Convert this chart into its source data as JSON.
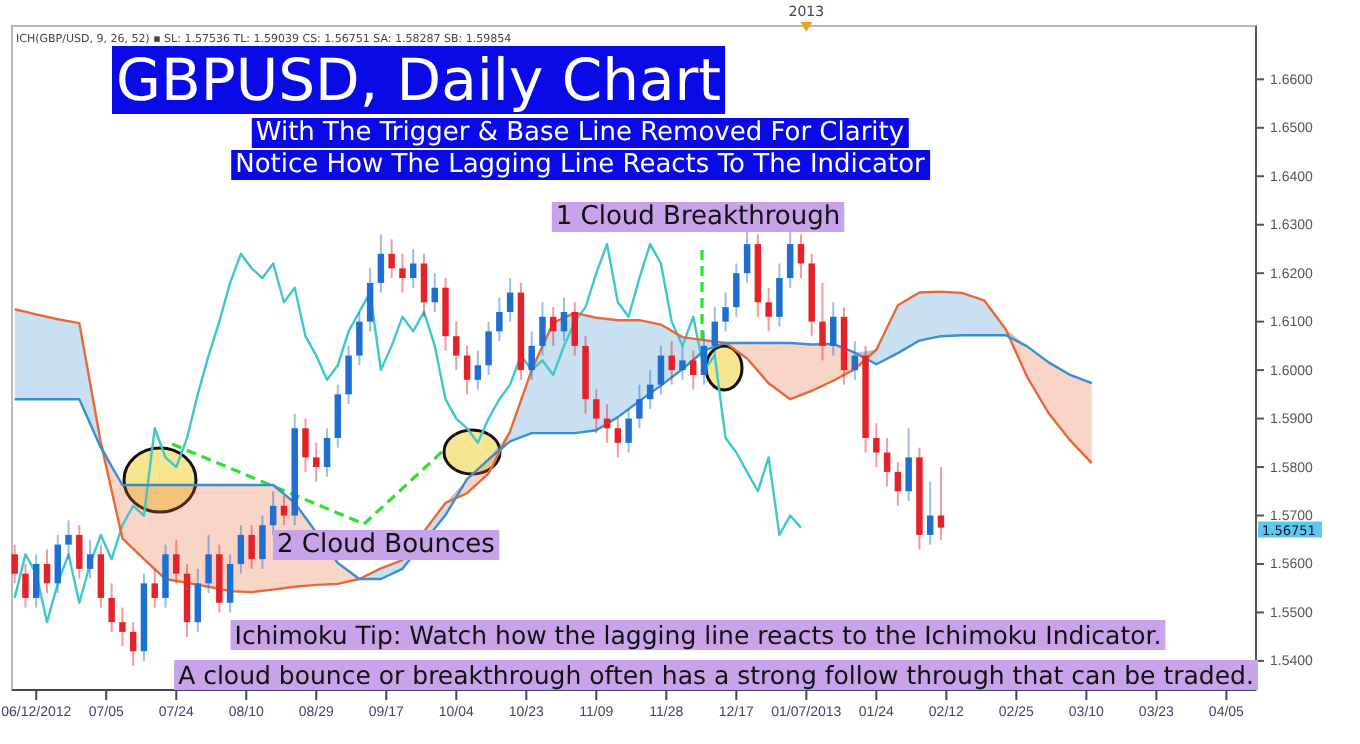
{
  "chart_data": {
    "type": "candlestick",
    "title": "GBPUSD, Daily Chart",
    "subtitle": "With The Trigger & Base Line Removed For Clarity",
    "annotations": [
      "Notice How The Lagging Line Reacts To The Indicator",
      "ICH(GBP/USD, 9, 26, 52) ▪ SL: 1.57536 TL: 1.59039 CS: 1.56751 SA: 1.58287 SB: 1.59854",
      "1 Cloud Breakthrough",
      "2 Cloud Bounces",
      "Ichimoku Tip: Watch how the lagging line reacts to the Ichimoku Indicator.",
      "A cloud bounce or breakthrough often has a strong follow through that can be traded.",
      "2013",
      "1.56751"
    ],
    "categories": [
      null,
      null,
      null,
      null,
      "06/12/2012",
      null,
      null,
      null,
      null,
      null,
      null,
      null,
      null,
      null,
      null,
      null,
      null,
      "07/05",
      null,
      null,
      null,
      null,
      null,
      null,
      null,
      null,
      null,
      null,
      null,
      null,
      "07/24",
      null,
      null,
      null,
      null,
      null,
      null,
      null,
      null,
      null,
      null,
      null,
      null,
      "08/10",
      null,
      null,
      null,
      null,
      null,
      null,
      null,
      null,
      null,
      null,
      null,
      null,
      "08/29",
      null,
      null,
      null,
      null,
      null,
      null,
      null,
      null,
      null,
      null,
      null,
      null,
      "09/17",
      null,
      null,
      null,
      null,
      null,
      null,
      null,
      null,
      null,
      null,
      null,
      null,
      "10/04",
      null,
      null,
      null,
      null,
      null,
      null,
      null,
      null,
      null,
      null,
      null,
      null,
      "10/23",
      null,
      null,
      null,
      null,
      null,
      null,
      null,
      null,
      null,
      null,
      null,
      null,
      "11/09",
      null,
      null,
      null,
      null,
      null,
      null,
      null,
      null,
      null,
      null,
      null,
      null,
      "11/28",
      null,
      null,
      null,
      null,
      null,
      null,
      null,
      null,
      null,
      null,
      null,
      null,
      "12/17",
      null,
      null,
      null,
      null,
      null,
      null,
      null,
      null,
      null,
      null,
      null,
      null,
      "01/07/2013",
      null,
      null,
      null,
      null,
      null,
      null,
      null,
      null,
      null,
      null,
      null,
      null,
      "01/24",
      null,
      null,
      null,
      null,
      null,
      null,
      null,
      null,
      null,
      null,
      null,
      null,
      "02/12",
      null,
      null,
      null,
      null,
      null,
      null,
      null,
      null,
      null,
      null,
      null,
      null,
      "02/25",
      null,
      null,
      null,
      null,
      null,
      null,
      null,
      null,
      null,
      null,
      null,
      null,
      "03/10",
      null,
      null,
      null,
      null,
      null,
      null,
      null,
      null,
      null,
      null,
      null,
      null,
      "03/23",
      null,
      null,
      null,
      null,
      null,
      null,
      null,
      null,
      null,
      null,
      null,
      null,
      "04/05",
      null,
      null,
      null,
      null,
      null
    ],
    "ohlc": [
      [
        1.562,
        1.564,
        1.556,
        1.558
      ],
      null,
      [
        1.558,
        1.56,
        1.551,
        1.553
      ],
      null,
      [
        1.553,
        1.562,
        1.551,
        1.56
      ],
      null,
      [
        1.56,
        1.563,
        1.554,
        1.556
      ],
      null,
      [
        1.556,
        1.566,
        1.554,
        1.564
      ],
      null,
      [
        1.564,
        1.569,
        1.561,
        1.566
      ],
      null,
      [
        1.566,
        1.568,
        1.557,
        1.559
      ],
      null,
      [
        1.559,
        1.565,
        1.557,
        1.562
      ],
      null,
      [
        1.562,
        1.564,
        1.551,
        1.553
      ],
      null,
      [
        1.553,
        1.556,
        1.546,
        1.548
      ],
      null,
      [
        1.548,
        1.551,
        1.543,
        1.546
      ],
      null,
      [
        1.546,
        1.548,
        1.539,
        1.542
      ],
      null,
      [
        1.542,
        1.558,
        1.54,
        1.556
      ],
      null,
      [
        1.556,
        1.559,
        1.551,
        1.553
      ],
      null,
      [
        1.553,
        1.564,
        1.551,
        1.562
      ],
      null,
      [
        1.562,
        1.565,
        1.556,
        1.558
      ],
      null,
      [
        1.558,
        1.56,
        1.545,
        1.548
      ],
      null,
      [
        1.548,
        1.559,
        1.546,
        1.556
      ],
      null,
      [
        1.556,
        1.566,
        1.554,
        1.562
      ],
      null,
      [
        1.562,
        1.564,
        1.55,
        1.552
      ],
      null,
      [
        1.552,
        1.562,
        1.55,
        1.56
      ],
      null,
      [
        1.56,
        1.568,
        1.558,
        1.566
      ],
      null,
      [
        1.566,
        1.568,
        1.559,
        1.561
      ],
      null,
      [
        1.561,
        1.57,
        1.559,
        1.568
      ],
      null,
      [
        1.568,
        1.575,
        1.566,
        1.572
      ],
      null,
      [
        1.572,
        1.574,
        1.568,
        1.57
      ],
      null,
      [
        1.57,
        1.591,
        1.568,
        1.588
      ],
      null,
      [
        1.588,
        1.59,
        1.579,
        1.582
      ],
      null,
      [
        1.582,
        1.585,
        1.577,
        1.58
      ],
      null,
      [
        1.58,
        1.588,
        1.578,
        1.586
      ],
      null,
      [
        1.586,
        1.597,
        1.584,
        1.595
      ],
      null,
      [
        1.595,
        1.605,
        1.593,
        1.603
      ],
      null,
      [
        1.603,
        1.612,
        1.601,
        1.61
      ],
      null,
      [
        1.61,
        1.621,
        1.608,
        1.618
      ],
      null,
      [
        1.618,
        1.628,
        1.616,
        1.624
      ],
      null,
      [
        1.624,
        1.627,
        1.619,
        1.621
      ],
      null,
      [
        1.621,
        1.624,
        1.616,
        1.619
      ],
      null,
      [
        1.619,
        1.625,
        1.617,
        1.622
      ],
      null,
      [
        1.622,
        1.624,
        1.611,
        1.614
      ],
      null,
      [
        1.614,
        1.62,
        1.612,
        1.617
      ],
      null,
      [
        1.617,
        1.619,
        1.604,
        1.607
      ],
      null,
      [
        1.607,
        1.61,
        1.6,
        1.603
      ],
      null,
      [
        1.603,
        1.605,
        1.595,
        1.598
      ],
      null,
      [
        1.598,
        1.604,
        1.596,
        1.601
      ],
      null,
      [
        1.601,
        1.61,
        1.599,
        1.608
      ],
      null,
      [
        1.608,
        1.615,
        1.606,
        1.612
      ],
      null,
      [
        1.612,
        1.619,
        1.61,
        1.616
      ],
      null,
      [
        1.616,
        1.618,
        1.598,
        1.6
      ],
      null,
      [
        1.6,
        1.608,
        1.598,
        1.605
      ],
      null,
      [
        1.605,
        1.614,
        1.603,
        1.611
      ],
      null,
      [
        1.611,
        1.613,
        1.605,
        1.608
      ],
      null,
      [
        1.608,
        1.615,
        1.606,
        1.612
      ],
      null,
      [
        1.612,
        1.614,
        1.603,
        1.605
      ],
      null,
      [
        1.605,
        1.607,
        1.591,
        1.594
      ],
      null,
      [
        1.594,
        1.596,
        1.587,
        1.59
      ],
      null,
      [
        1.59,
        1.593,
        1.585,
        1.588
      ],
      null,
      [
        1.588,
        1.59,
        1.582,
        1.585
      ],
      null,
      [
        1.585,
        1.592,
        1.583,
        1.59
      ],
      null,
      [
        1.59,
        1.597,
        1.588,
        1.594
      ],
      null,
      [
        1.594,
        1.6,
        1.592,
        1.597
      ],
      null,
      [
        1.597,
        1.605,
        1.595,
        1.603
      ],
      null,
      [
        1.603,
        1.606,
        1.597,
        1.6
      ],
      null,
      [
        1.6,
        1.605,
        1.598,
        1.602
      ],
      null,
      [
        1.602,
        1.604,
        1.596,
        1.599
      ],
      null,
      [
        1.599,
        1.608,
        1.597,
        1.605
      ],
      null,
      [
        1.605,
        1.613,
        1.603,
        1.61
      ],
      null,
      [
        1.61,
        1.616,
        1.608,
        1.613
      ],
      null,
      [
        1.613,
        1.622,
        1.611,
        1.62
      ],
      null,
      [
        1.62,
        1.629,
        1.618,
        1.626
      ],
      null,
      [
        1.626,
        1.628,
        1.611,
        1.614
      ],
      null,
      [
        1.614,
        1.617,
        1.608,
        1.611
      ],
      null,
      [
        1.611,
        1.622,
        1.609,
        1.619
      ],
      null,
      [
        1.619,
        1.634,
        1.617,
        1.626
      ],
      null,
      [
        1.626,
        1.628,
        1.619,
        1.622
      ],
      null,
      [
        1.622,
        1.624,
        1.607,
        1.61
      ],
      null,
      [
        1.61,
        1.618,
        1.602,
        1.605
      ],
      null,
      [
        1.605,
        1.614,
        1.603,
        1.611
      ],
      null,
      [
        1.611,
        1.613,
        1.597,
        1.6
      ],
      null,
      [
        1.6,
        1.606,
        1.598,
        1.603
      ],
      null,
      [
        1.603,
        1.605,
        1.583,
        1.586
      ],
      null,
      [
        1.586,
        1.589,
        1.58,
        1.583
      ],
      null,
      [
        1.583,
        1.586,
        1.576,
        1.579
      ],
      null,
      [
        1.579,
        1.581,
        1.572,
        1.575
      ],
      null,
      [
        1.575,
        1.588,
        1.573,
        1.582
      ],
      null,
      [
        1.582,
        1.584,
        1.563,
        1.566
      ],
      null,
      [
        1.566,
        1.577,
        1.564,
        1.57
      ],
      null,
      [
        1.57,
        1.58,
        1.565,
        1.56751
      ],
      null,
      null,
      null,
      null,
      null,
      null,
      null,
      null,
      null,
      null,
      null,
      null,
      null,
      null,
      null,
      null,
      null,
      null,
      null,
      null,
      null,
      null,
      null,
      null,
      null,
      null,
      null,
      null,
      null,
      null,
      null,
      null,
      null,
      null,
      null,
      null,
      null,
      null,
      null,
      null,
      null,
      null,
      null,
      null,
      null,
      null,
      null,
      null,
      null,
      null,
      null,
      null,
      null,
      null,
      null,
      null,
      null,
      null
    ],
    "series": [
      {
        "type": "line",
        "color": "#3ec8c8",
        "values": [
          1.553,
          null,
          1.562,
          null,
          1.558,
          null,
          1.548,
          null,
          1.556,
          null,
          1.562,
          null,
          1.552,
          null,
          1.56,
          null,
          1.566,
          null,
          1.561,
          null,
          1.568,
          null,
          1.572,
          null,
          1.57,
          null,
          1.588,
          null,
          1.582,
          null,
          1.58,
          null,
          1.586,
          null,
          1.595,
          null,
          1.603,
          null,
          1.61,
          null,
          1.618,
          null,
          1.624,
          null,
          1.621,
          null,
          1.619,
          null,
          1.622,
          null,
          1.614,
          null,
          1.617,
          null,
          1.607,
          null,
          1.603,
          null,
          1.598,
          null,
          1.601,
          null,
          1.608,
          null,
          1.612,
          null,
          1.616,
          null,
          1.6,
          null,
          1.605,
          null,
          1.611,
          null,
          1.608,
          null,
          1.612,
          null,
          1.605,
          null,
          1.594,
          null,
          1.59,
          null,
          1.588,
          null,
          1.585,
          null,
          1.59,
          null,
          1.594,
          null,
          1.597,
          null,
          1.603,
          null,
          1.6,
          null,
          1.602,
          null,
          1.599,
          null,
          1.605,
          null,
          1.61,
          null,
          1.613,
          null,
          1.62,
          null,
          1.626,
          null,
          1.614,
          null,
          1.611,
          null,
          1.619,
          null,
          1.626,
          null,
          1.622,
          null,
          1.61,
          null,
          1.605,
          null,
          1.611,
          null,
          1.6,
          null,
          1.603,
          null,
          1.586,
          null,
          1.583,
          null,
          1.579,
          null,
          1.575,
          null,
          1.582,
          null,
          1.566,
          null,
          1.57,
          null,
          1.5675,
          null,
          null,
          null,
          null,
          null,
          null,
          null,
          null,
          null,
          null,
          null,
          null,
          null,
          null,
          null,
          null,
          null,
          null,
          null,
          null,
          null,
          null,
          null,
          null,
          null,
          null,
          null,
          null,
          null,
          null,
          null,
          null,
          null,
          null,
          null,
          null,
          null,
          null,
          null,
          null,
          null,
          null,
          null,
          null,
          null,
          null,
          null,
          null,
          null,
          null,
          null,
          null,
          null,
          null,
          null,
          null,
          null,
          null,
          null,
          null,
          null,
          null,
          null,
          null,
          null,
          null,
          null,
          null,
          null,
          null,
          null,
          null,
          null,
          null,
          null,
          null,
          null,
          null,
          null,
          null,
          null,
          null,
          null,
          null
        ]
      },
      {
        "type": "line",
        "color": "#e8683a",
        "values": [
          1.6126,
          null,
          null,
          null,
          1.6115,
          null,
          null,
          null,
          1.6105,
          null,
          null,
          null,
          1.6097,
          null,
          null,
          null,
          1.585,
          null,
          null,
          null,
          1.5653,
          null,
          null,
          null,
          1.561,
          null,
          null,
          null,
          1.5569,
          null,
          null,
          null,
          1.5561,
          null,
          null,
          null,
          1.5553,
          null,
          null,
          null,
          1.5544,
          null,
          null,
          null,
          1.5542,
          null,
          null,
          null,
          1.5547,
          null,
          null,
          null,
          1.5553,
          null,
          null,
          null,
          1.5557,
          null,
          null,
          null,
          1.5559,
          null,
          null,
          null,
          1.5569,
          null,
          null,
          null,
          1.5591,
          null,
          null,
          null,
          1.5608,
          null,
          null,
          null,
          null,
          null,
          null,
          null,
          1.5726,
          null,
          null,
          null,
          1.5746,
          null,
          null,
          null,
          1.5787,
          null,
          null,
          null,
          1.5874,
          null,
          null,
          null,
          1.6,
          null,
          null,
          null,
          1.6098,
          null,
          null,
          null,
          1.6118,
          null,
          null,
          null,
          1.6108,
          null,
          null,
          null,
          1.6103,
          null,
          null,
          null,
          1.6103,
          null,
          null,
          null,
          1.6094,
          null,
          null,
          null,
          1.6068,
          null,
          null,
          null,
          1.6062,
          null,
          null,
          null,
          1.6056,
          null,
          null,
          null,
          1.6024,
          null,
          null,
          null,
          1.5973,
          null,
          null,
          null,
          1.594,
          null,
          null,
          null,
          1.5957,
          null,
          null,
          null,
          1.5978,
          null,
          null,
          null,
          1.6002,
          null,
          null,
          null,
          1.6042,
          null,
          null,
          null,
          1.6134,
          null,
          null,
          null,
          1.616,
          null,
          null,
          null,
          1.6162,
          null,
          null,
          null,
          1.6159,
          null,
          null,
          null,
          1.6144,
          null,
          null,
          null,
          1.6085,
          null,
          null,
          null,
          1.5986,
          null,
          null,
          null,
          1.5911,
          null,
          null,
          null,
          1.5855,
          null,
          null,
          null,
          1.5808,
          null,
          null,
          null,
          null,
          null,
          null,
          null,
          null,
          null,
          null,
          null,
          null,
          null,
          null,
          null,
          null,
          null,
          null,
          null,
          null,
          null,
          null,
          null,
          null,
          null,
          null,
          null,
          null,
          null,
          null
        ]
      },
      {
        "type": "line",
        "color": "#3a8fcf",
        "values": [
          1.594,
          null,
          null,
          null,
          1.594,
          null,
          null,
          null,
          1.594,
          null,
          null,
          null,
          1.594,
          null,
          null,
          null,
          1.584,
          null,
          null,
          null,
          1.5763,
          null,
          null,
          null,
          1.5763,
          null,
          null,
          null,
          1.5763,
          null,
          null,
          null,
          1.5763,
          null,
          null,
          null,
          1.5763,
          null,
          null,
          null,
          1.5763,
          null,
          null,
          null,
          1.5763,
          null,
          null,
          null,
          1.5763,
          null,
          null,
          null,
          1.5726,
          null,
          null,
          null,
          1.5665,
          null,
          null,
          null,
          1.5602,
          null,
          null,
          null,
          1.5569,
          null,
          null,
          null,
          1.5569,
          null,
          null,
          null,
          1.559,
          null,
          null,
          null,
          null,
          null,
          null,
          null,
          1.5701,
          null,
          null,
          null,
          1.5775,
          null,
          null,
          null,
          1.5816,
          null,
          null,
          null,
          1.5853,
          null,
          null,
          null,
          1.587,
          null,
          null,
          null,
          1.587,
          null,
          null,
          null,
          1.587,
          null,
          null,
          null,
          1.5876,
          null,
          null,
          null,
          1.5903,
          null,
          null,
          null,
          1.5936,
          null,
          null,
          null,
          1.5968,
          null,
          null,
          null,
          1.6002,
          null,
          null,
          null,
          1.604,
          null,
          null,
          null,
          1.6056,
          null,
          null,
          null,
          1.6056,
          null,
          null,
          null,
          1.6056,
          null,
          null,
          null,
          1.6056,
          null,
          null,
          null,
          1.6053,
          null,
          null,
          null,
          1.6054,
          null,
          null,
          null,
          1.6036,
          null,
          null,
          null,
          1.6012,
          null,
          null,
          null,
          1.6035,
          null,
          null,
          null,
          1.6061,
          null,
          null,
          null,
          1.607,
          null,
          null,
          null,
          1.6072,
          null,
          null,
          null,
          1.6072,
          null,
          null,
          null,
          1.6072,
          null,
          null,
          null,
          1.6049,
          null,
          null,
          null,
          1.6016,
          null,
          null,
          null,
          1.599,
          null,
          null,
          null,
          1.5973,
          null,
          null,
          null,
          null,
          null,
          null,
          null,
          null,
          null,
          null,
          null,
          null,
          null,
          null,
          null,
          null,
          null,
          null,
          null,
          null,
          null,
          null,
          null,
          null,
          null,
          null,
          null,
          null,
          null,
          null
        ]
      }
    ],
    "ylim": [
      1.534,
      1.671
    ],
    "yticks": [
      {
        "value": 1.54,
        "label": "1.5400"
      },
      {
        "value": 1.55,
        "label": "1.5500"
      },
      {
        "value": 1.56,
        "label": "1.5600"
      },
      {
        "value": 1.57,
        "label": "1.5700"
      },
      {
        "value": 1.58,
        "label": "1.5800"
      },
      {
        "value": 1.59,
        "label": "1.5900"
      },
      {
        "value": 1.6,
        "label": "1.6000"
      },
      {
        "value": 1.61,
        "label": "1.6100"
      },
      {
        "value": 1.62,
        "label": "1.6200"
      },
      {
        "value": 1.63,
        "label": "1.6300"
      },
      {
        "value": 1.64,
        "label": "1.6400"
      },
      {
        "value": 1.65,
        "label": "1.6500"
      },
      {
        "value": 1.66,
        "label": "1.6600"
      }
    ]
  }
}
